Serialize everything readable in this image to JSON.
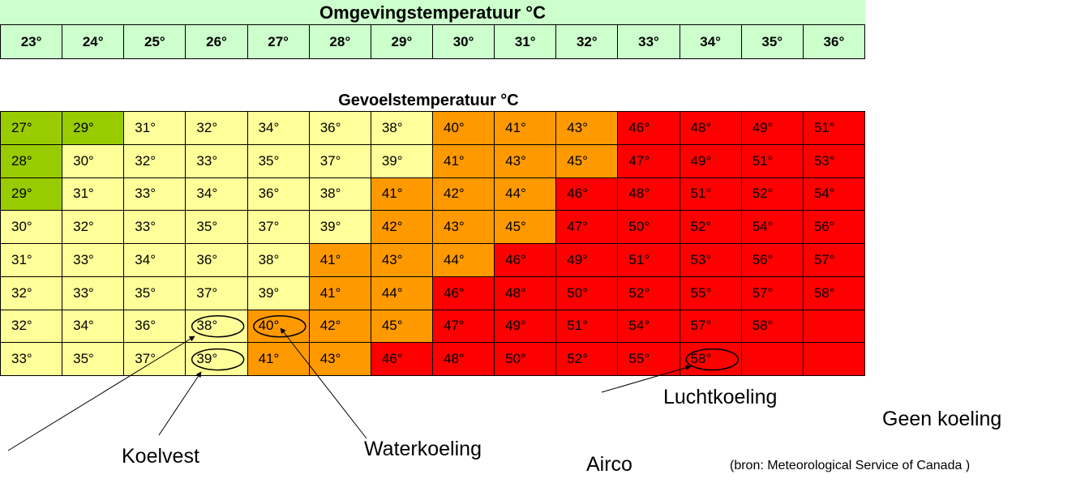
{
  "header": {
    "ambient_title": "Omgevingstemperatuur °C",
    "feels_title": "Gevoelstemperatuur °C"
  },
  "colors": {
    "header_bg": "#ccffcc",
    "dark_green": "#99cc00",
    "light_yellow": "#ffff99",
    "orange": "#ff9900",
    "red": "#ff0000"
  },
  "chart_data": {
    "type": "heatmap",
    "title": "Gevoelstemperatuur °C",
    "xlabel": "Omgevingstemperatuur °C",
    "x": [
      "23°",
      "24°",
      "25°",
      "26°",
      "27°",
      "28°",
      "29°",
      "30°",
      "31°",
      "32°",
      "33°",
      "34°",
      "35°",
      "36°"
    ],
    "rows": [
      [
        "27°",
        "29°",
        "31°",
        "32°",
        "34°",
        "36°",
        "38°",
        "40°",
        "41°",
        "43°",
        "46°",
        "48°",
        "49°",
        "51°"
      ],
      [
        "28°",
        "30°",
        "32°",
        "33°",
        "35°",
        "37°",
        "39°",
        "41°",
        "43°",
        "45°",
        "47°",
        "49°",
        "51°",
        "53°"
      ],
      [
        "29°",
        "31°",
        "33°",
        "34°",
        "36°",
        "38°",
        "41°",
        "42°",
        "44°",
        "46°",
        "48°",
        "51°",
        "52°",
        "54°"
      ],
      [
        "30°",
        "32°",
        "33°",
        "35°",
        "37°",
        "39°",
        "42°",
        "43°",
        "45°",
        "47°",
        "50°",
        "52°",
        "54°",
        "56°"
      ],
      [
        "31°",
        "33°",
        "34°",
        "36°",
        "38°",
        "41°",
        "43°",
        "44°",
        "46°",
        "49°",
        "51°",
        "53°",
        "56°",
        "57°"
      ],
      [
        "32°",
        "33°",
        "35°",
        "37°",
        "39°",
        "41°",
        "44°",
        "46°",
        "48°",
        "50°",
        "52°",
        "55°",
        "57°",
        "58°"
      ],
      [
        "32°",
        "34°",
        "36°",
        "38°",
        "40°",
        "42°",
        "45°",
        "47°",
        "49°",
        "51°",
        "54°",
        "57°",
        "58°",
        ""
      ],
      [
        "33°",
        "35°",
        "37°",
        "39°",
        "41°",
        "43°",
        "46°",
        "48°",
        "50°",
        "52°",
        "55°",
        "58°",
        "",
        ""
      ]
    ],
    "color_rows": [
      [
        "G",
        "G",
        "Y",
        "Y",
        "Y",
        "Y",
        "Y",
        "O",
        "O",
        "O",
        "R",
        "R",
        "R",
        "R"
      ],
      [
        "G",
        "Y",
        "Y",
        "Y",
        "Y",
        "Y",
        "Y",
        "O",
        "O",
        "O",
        "R",
        "R",
        "R",
        "R"
      ],
      [
        "G",
        "Y",
        "Y",
        "Y",
        "Y",
        "Y",
        "O",
        "O",
        "O",
        "R",
        "R",
        "R",
        "R",
        "R"
      ],
      [
        "Y",
        "Y",
        "Y",
        "Y",
        "Y",
        "Y",
        "O",
        "O",
        "O",
        "R",
        "R",
        "R",
        "R",
        "R"
      ],
      [
        "Y",
        "Y",
        "Y",
        "Y",
        "Y",
        "O",
        "O",
        "O",
        "R",
        "R",
        "R",
        "R",
        "R",
        "R"
      ],
      [
        "Y",
        "Y",
        "Y",
        "Y",
        "Y",
        "O",
        "O",
        "R",
        "R",
        "R",
        "R",
        "R",
        "R",
        "R"
      ],
      [
        "Y",
        "Y",
        "Y",
        "Y",
        "O",
        "O",
        "O",
        "R",
        "R",
        "R",
        "R",
        "R",
        "R",
        "R"
      ],
      [
        "Y",
        "Y",
        "Y",
        "Y",
        "O",
        "O",
        "R",
        "R",
        "R",
        "R",
        "R",
        "R",
        "R",
        "R"
      ]
    ],
    "annotations": [
      {
        "label": "Koelvest",
        "points": [
          [
            6,
            3
          ],
          [
            7,
            3
          ]
        ]
      },
      {
        "label": "Waterkoeling",
        "points": [
          [
            6,
            4
          ]
        ]
      },
      {
        "label": "Luchtkoeling",
        "points": [
          [
            7,
            11
          ]
        ]
      },
      {
        "label": "Airco",
        "points": []
      },
      {
        "label": "Geen koeling",
        "points": []
      }
    ],
    "source": "(bron: Meteorological Service of Canada )"
  }
}
